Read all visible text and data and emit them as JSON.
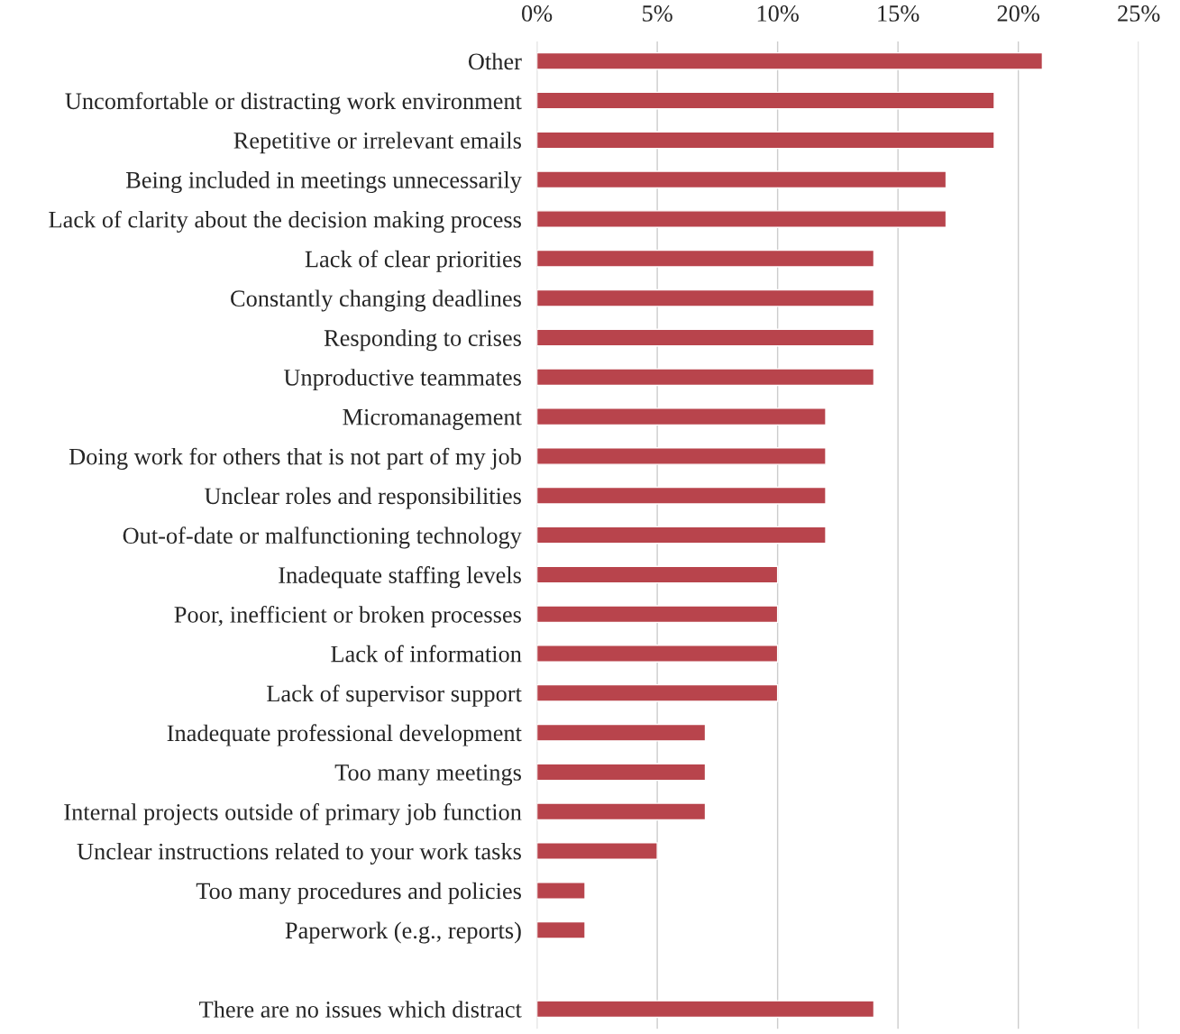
{
  "chart_data": {
    "type": "bar",
    "orientation": "horizontal",
    "categories": [
      "Other",
      "Uncomfortable or distracting work environment",
      "Repetitive or irrelevant emails",
      "Being included in meetings unnecessarily",
      "Lack of clarity about the decision making process",
      "Lack of clear priorities",
      "Constantly changing deadlines",
      "Responding to crises",
      "Unproductive teammates",
      "Micromanagement",
      "Doing work for others that is not part of my job",
      "Unclear roles and responsibilities",
      "Out-of-date or malfunctioning technology",
      "Inadequate staffing levels",
      "Poor, inefficient or broken processes",
      "Lack of information",
      "Lack of supervisor support",
      "Inadequate professional development",
      "Too many meetings",
      "Internal projects outside of primary job function",
      "Unclear instructions related to your work tasks",
      "Too many procedures and policies",
      "Paperwork (e.g., reports)",
      null,
      "There are no issues which distract"
    ],
    "values": [
      21,
      19,
      19,
      17,
      17,
      14,
      14,
      14,
      14,
      12,
      12,
      12,
      12,
      10,
      10,
      10,
      10,
      7,
      7,
      7,
      5,
      2,
      2,
      null,
      14
    ],
    "color": "#b8444c",
    "xlim": [
      0,
      25
    ],
    "xticks": [
      {
        "value": 0,
        "label": "0%"
      },
      {
        "value": 5,
        "label": "5%"
      },
      {
        "value": 10,
        "label": "10%"
      },
      {
        "value": 15,
        "label": "15%"
      },
      {
        "value": 20,
        "label": "20%"
      },
      {
        "value": 25,
        "label": "25%"
      }
    ],
    "grid": "x"
  }
}
